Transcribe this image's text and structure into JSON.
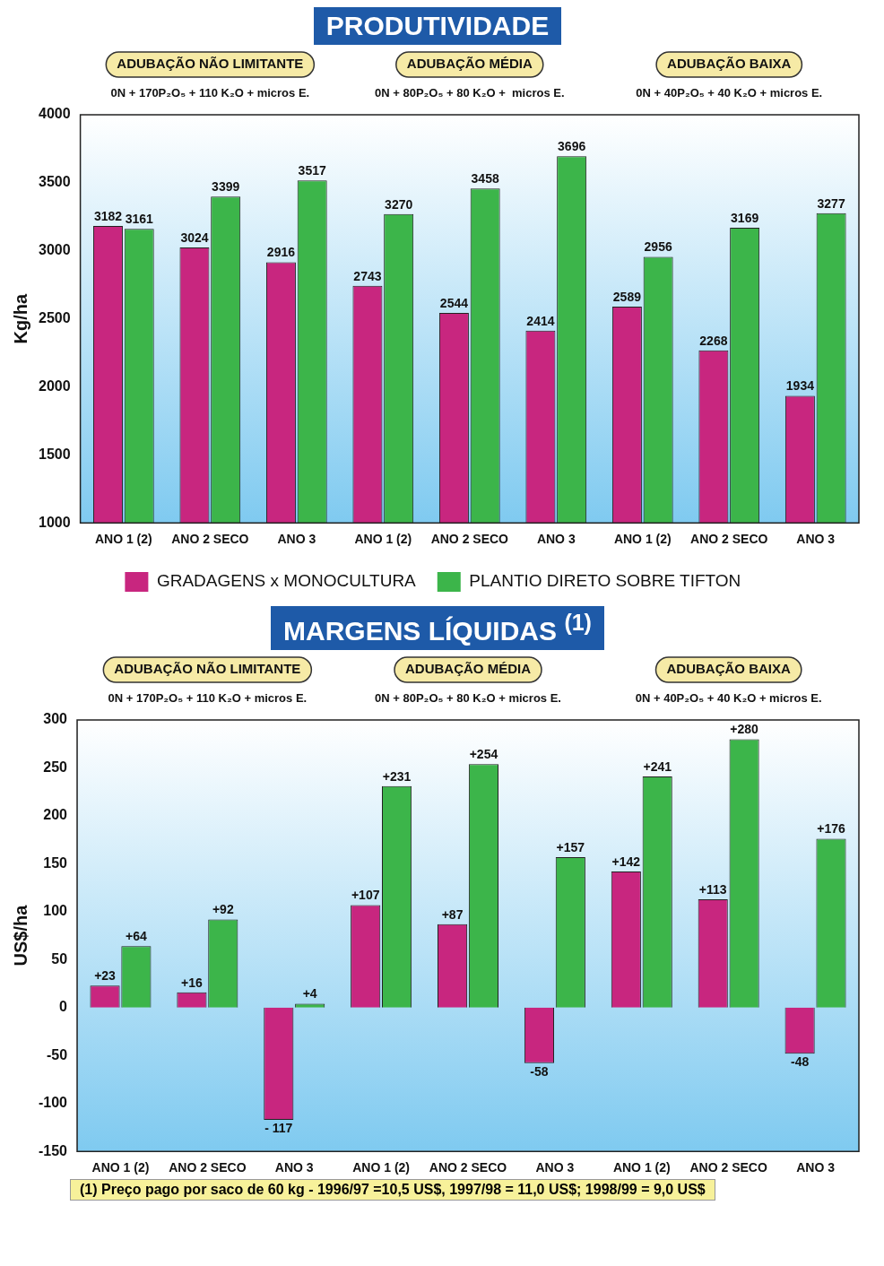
{
  "chart_data": [
    {
      "type": "bar",
      "title": "PRODUTIVIDADE",
      "ylabel": "Kg/ha",
      "categories": [
        "ANO 1 (2)",
        "ANO 2 SECO",
        "ANO 3",
        "ANO 1 (2)",
        "ANO 2 SECO",
        "ANO 3",
        "ANO 1 (2)",
        "ANO 2 SECO",
        "ANO 3"
      ],
      "series": [
        {
          "name": "GRADAGENS x MONOCULTURA",
          "color": "#c8267f",
          "values": [
            3182,
            3024,
            2916,
            2743,
            2544,
            2414,
            2589,
            2268,
            1934
          ]
        },
        {
          "name": "PLANTIO DIRETO SOBRE TIFTON",
          "color": "#3cb54a",
          "values": [
            3161,
            3399,
            3517,
            3270,
            3458,
            3696,
            2956,
            3169,
            3277
          ]
        }
      ],
      "ylim": [
        1000,
        4000
      ],
      "yticks": [
        1000,
        1500,
        2000,
        2500,
        3000,
        3500,
        4000
      ],
      "data_labels": true,
      "legend": "bottom",
      "annotations": [
        "ADUBAÇÃO NÃO LIMITANTE",
        "0N + 170P₂O₅ + 110 K₂O + micros E.",
        "ADUBAÇÃO MÉDIA",
        "0N + 80P₂O₅ + 80 K₂O +  micros E.",
        "ADUBAÇÃO BAIXA",
        "0N + 40P₂O₅ + 40 K₂O + micros E."
      ]
    },
    {
      "type": "bar",
      "title": "MARGENS LÍQUIDAS $^{(1)}$",
      "ylabel": "US$/ha",
      "categories": [
        "ANO 1 (2)",
        "ANO 2 SECO",
        "ANO 3",
        "ANO 1 (2)",
        "ANO 2 SECO",
        "ANO 3",
        "ANO 1 (2)",
        "ANO 2 SECO",
        "ANO 3"
      ],
      "series": [
        {
          "color": "#c8267f",
          "values": [
            23,
            16,
            -117,
            107,
            87,
            -58,
            142,
            113,
            -48
          ],
          "value_labels": [
            "+23",
            "+16",
            "- 117",
            "+107",
            "+87",
            "-58",
            "+142",
            "+113",
            "-48"
          ]
        },
        {
          "color": "#3cb54a",
          "values": [
            64,
            92,
            4,
            231,
            254,
            157,
            241,
            280,
            176
          ],
          "value_labels": [
            "+64",
            "+92",
            "+4",
            "+231",
            "+254",
            "+157",
            "+241",
            "+280",
            "+176"
          ]
        }
      ],
      "ylim": [
        -150,
        300
      ],
      "yticks": [
        -150,
        -100,
        -50,
        0,
        50,
        100,
        150,
        200,
        250,
        300
      ],
      "annotations": [
        "ADUBAÇÃO NÃO LIMITANTE",
        "0N + 170P₂O₅ + 110 K₂O + micros E.",
        "ADUBAÇÃO MÉDIA",
        "0N + 80P₂O₅ + 80 K₂O + micros E.",
        "ADUBAÇÃO BAIXA",
        "0N + 40P₂O₅ + 40 K₂O + micros E.",
        "(1) Preço pago por saco de 60 kg - 1996/97 =10,5 US$, 1997/98 = 11,0 US$; 1998/99 = 9,0 US$"
      ]
    }
  ]
}
